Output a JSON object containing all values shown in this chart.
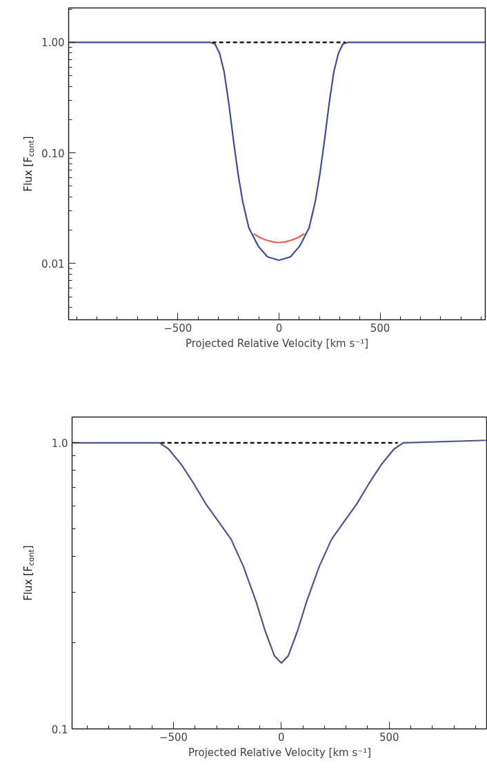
{
  "chart_data": [
    {
      "type": "line",
      "xlabel": "Projected Relative Velocity [km s⁻¹]",
      "ylabel": "Flux [F$_{cont}$]",
      "log": "y",
      "xlim": [
        -1040,
        1020
      ],
      "ylim": [
        0.0031,
        2.05
      ],
      "xticks": [
        -500,
        0,
        500
      ],
      "yticks": [
        {
          "value": 0.01,
          "label": "0.01"
        },
        {
          "value": 0.1,
          "label": "0.10"
        },
        {
          "value": 1,
          "label": "1.00"
        }
      ],
      "series": [
        {
          "color": "#000000",
          "line_style": "dashed",
          "x": [
            -330,
            330
          ],
          "values": [
            1,
            1
          ]
        },
        {
          "color": "#3a4aa0",
          "line_style": "solid",
          "x": [
            -1040,
            -340,
            -317,
            -294,
            -271,
            -248,
            -225,
            -202,
            -179,
            -149,
            -103,
            -57,
            0,
            57,
            103,
            149,
            179,
            202,
            225,
            248,
            271,
            294,
            317,
            340,
            1020
          ],
          "values": [
            1,
            1,
            0.97,
            0.8,
            0.54,
            0.28,
            0.13,
            0.064,
            0.036,
            0.021,
            0.0144,
            0.0115,
            0.0107,
            0.0115,
            0.0144,
            0.021,
            0.036,
            0.064,
            0.13,
            0.28,
            0.54,
            0.8,
            0.97,
            1,
            1
          ]
        },
        {
          "color": "#e8604a",
          "line_style": "solid",
          "x": [
            -126,
            -95,
            -63,
            -30,
            0,
            30,
            63,
            95,
            126
          ],
          "values": [
            0.0186,
            0.0172,
            0.0163,
            0.0157,
            0.0155,
            0.0157,
            0.0163,
            0.0172,
            0.0186
          ]
        }
      ]
    },
    {
      "type": "line",
      "xlabel": "Projected Relative Velocity [km s⁻¹]",
      "ylabel": "Flux [F$_{cont}$]",
      "log": "y",
      "xlim": [
        -970,
        955
      ],
      "ylim": [
        0.1,
        1.23
      ],
      "xticks": [
        -500,
        0,
        500
      ],
      "yticks": [
        0.1,
        {
          "value": 1,
          "label": "1.0"
        }
      ],
      "series": [
        {
          "color": "#000000",
          "line_style": "dashed",
          "x": [
            -560,
            540
          ],
          "values": [
            1,
            1
          ]
        },
        {
          "color": "#4a5590",
          "line_style": "solid",
          "x": [
            -970,
            -565,
            -522,
            -464,
            -406,
            -349,
            -291,
            -233,
            -176,
            -118,
            -75,
            -32,
            0,
            32,
            75,
            118,
            176,
            233,
            291,
            349,
            406,
            464,
            522,
            565,
            955
          ],
          "values": [
            1,
            1,
            0.95,
            0.84,
            0.72,
            0.61,
            0.53,
            0.46,
            0.37,
            0.28,
            0.22,
            0.18,
            0.17,
            0.18,
            0.22,
            0.28,
            0.37,
            0.46,
            0.53,
            0.61,
            0.72,
            0.84,
            0.95,
            1,
            1.02
          ]
        }
      ]
    }
  ]
}
